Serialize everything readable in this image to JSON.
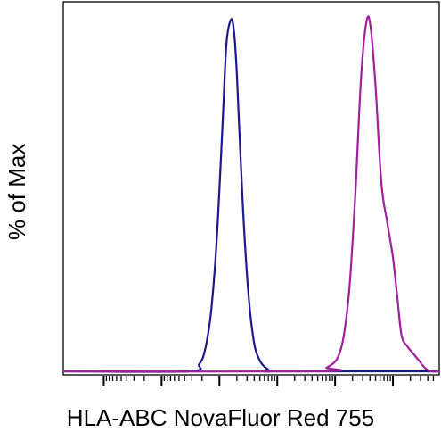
{
  "chart_data": {
    "type": "area",
    "title": "",
    "xlabel": "HLA-ABC NovaFluor Red 755",
    "ylabel": "% of Max",
    "x_scale": "biexponential",
    "xlim": [
      -2.7,
      3.8
    ],
    "ylim": [
      0,
      100
    ],
    "grid": false,
    "legend": "none",
    "x_tick_labels_shown": false,
    "series": [
      {
        "color": "#1a1a8c",
        "x": [
          -0.55,
          -0.35,
          -0.25,
          -0.15,
          -0.05,
          0.05,
          0.12,
          0.2,
          0.25,
          0.3,
          0.4,
          0.5,
          0.6,
          0.7,
          0.8,
          0.9,
          1.0
        ],
        "y": [
          0,
          2,
          6,
          16,
          36,
          68,
          92,
          99,
          96,
          84,
          48,
          22,
          8,
          3,
          1,
          0,
          0
        ]
      },
      {
        "color": "#a020a0",
        "x": [
          1.75,
          1.85,
          1.95,
          2.05,
          2.15,
          2.25,
          2.35,
          2.45,
          2.55,
          2.62,
          2.7,
          2.8,
          2.9,
          3.0,
          3.08,
          3.15,
          3.25,
          3.35,
          3.45,
          3.55,
          3.65
        ],
        "y": [
          0,
          1,
          2,
          4,
          10,
          24,
          50,
          83,
          99,
          96,
          80,
          53,
          42,
          32,
          20,
          10,
          7,
          5,
          3,
          1,
          0
        ]
      }
    ]
  }
}
